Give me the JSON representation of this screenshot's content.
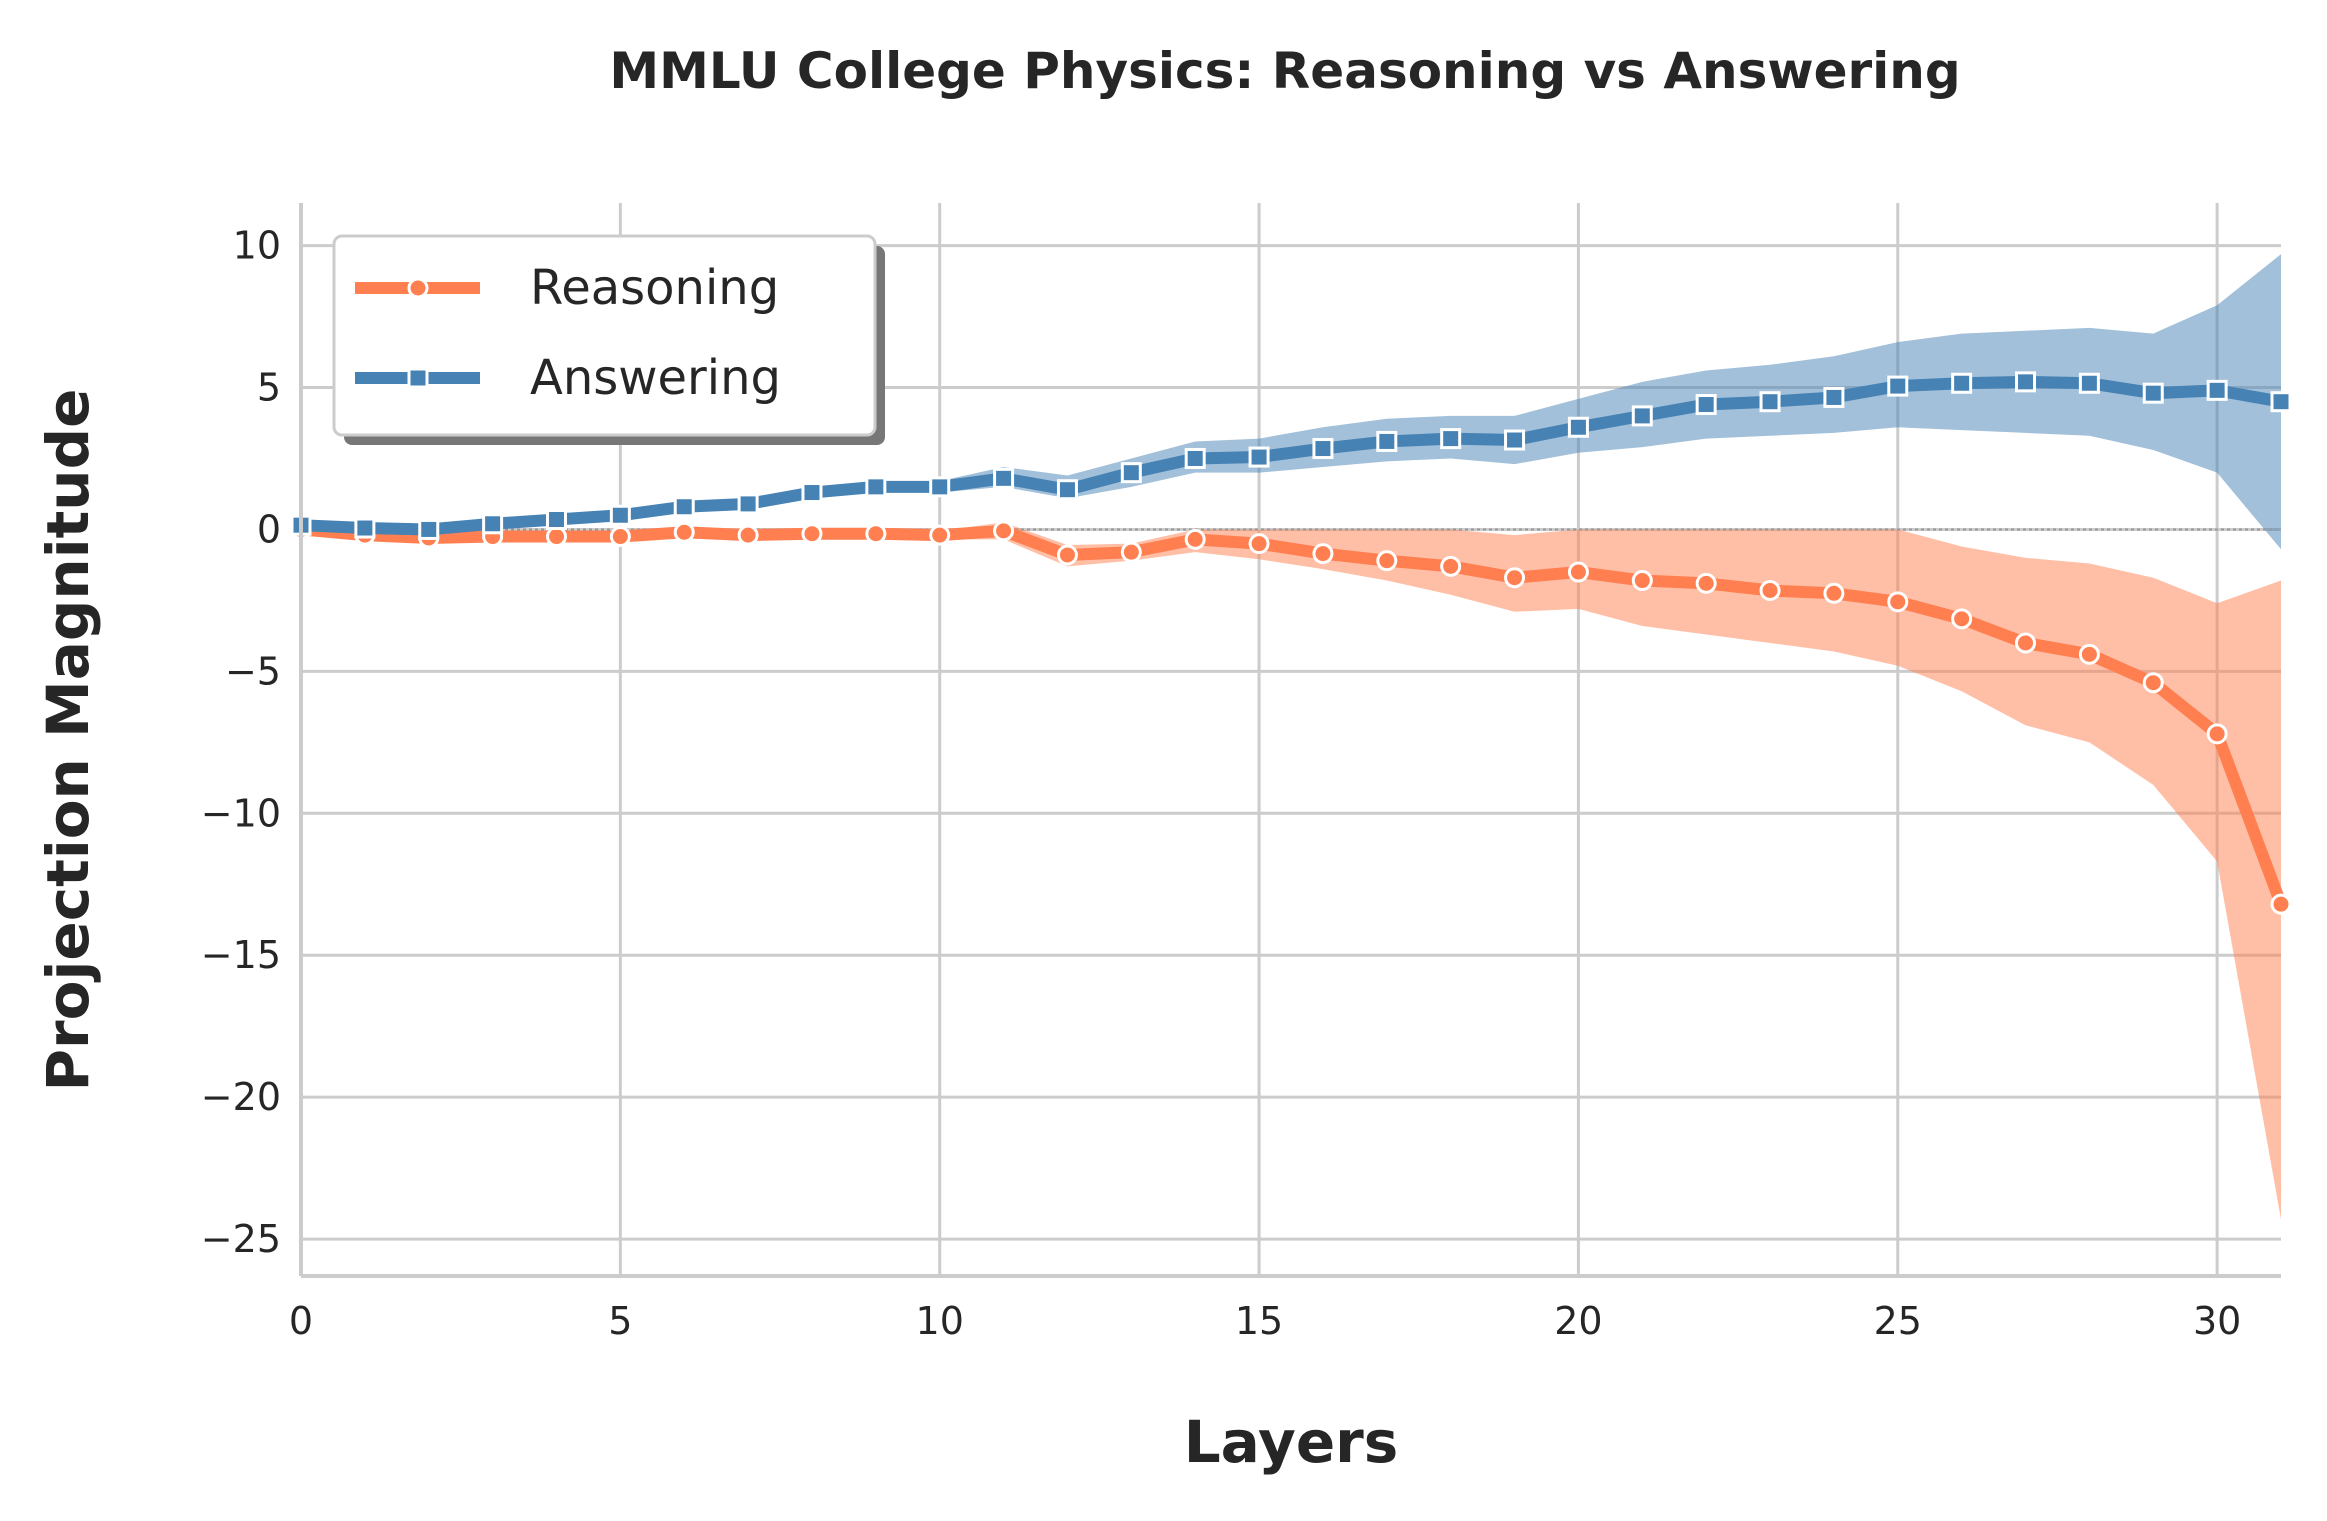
{
  "chart_data": {
    "type": "line",
    "title": "MMLU College Physics: Reasoning vs Answering",
    "xlabel": "Layers",
    "ylabel": "Projection Magnitude",
    "xlim": [
      0,
      31
    ],
    "ylim": [
      -26.3,
      11.5
    ],
    "xticks": [
      0,
      5,
      10,
      15,
      20,
      25,
      30
    ],
    "yticks": [
      10,
      5,
      0,
      -5,
      -10,
      -15,
      -20,
      -25
    ],
    "ytick_labels": [
      "10",
      "5",
      "0",
      "−5",
      "−10",
      "−15",
      "−20",
      "−25"
    ],
    "grid": true,
    "legend_position": "upper-left",
    "zero_line": true,
    "x": [
      0,
      1,
      2,
      3,
      4,
      5,
      6,
      7,
      8,
      9,
      10,
      11,
      12,
      13,
      14,
      15,
      16,
      17,
      18,
      19,
      20,
      21,
      22,
      23,
      24,
      25,
      26,
      27,
      28,
      29,
      30,
      31
    ],
    "series": [
      {
        "name": "Reasoning",
        "color": "#ff7f50",
        "marker": "circle",
        "values": [
          0,
          -0.2,
          -0.3,
          -0.25,
          -0.25,
          -0.25,
          -0.1,
          -0.2,
          -0.15,
          -0.15,
          -0.2,
          -0.05,
          -0.9,
          -0.8,
          -0.35,
          -0.5,
          -0.85,
          -1.1,
          -1.3,
          -1.7,
          -1.5,
          -1.8,
          -1.9,
          -2.15,
          -2.25,
          -2.55,
          -3.15,
          -4.0,
          -4.4,
          -5.4,
          -7.2,
          -13.2
        ],
        "lower": [
          -0.1,
          -0.35,
          -0.45,
          -0.4,
          -0.4,
          -0.4,
          -0.25,
          -0.35,
          -0.3,
          -0.3,
          -0.35,
          -0.35,
          -1.3,
          -1.1,
          -0.8,
          -1.05,
          -1.4,
          -1.8,
          -2.3,
          -2.9,
          -2.8,
          -3.4,
          -3.7,
          -4.0,
          -4.3,
          -4.8,
          -5.7,
          -6.9,
          -7.5,
          -9.0,
          -11.7,
          -24.3
        ],
        "upper": [
          0.1,
          -0.05,
          -0.15,
          -0.1,
          -0.1,
          -0.1,
          0.05,
          -0.05,
          0,
          0,
          -0.05,
          0.25,
          -0.55,
          -0.5,
          0,
          0,
          0,
          0,
          0,
          -0.2,
          0,
          0,
          0,
          0,
          0,
          0,
          -0.6,
          -1.0,
          -1.2,
          -1.7,
          -2.6,
          -1.8
        ]
      },
      {
        "name": "Answering",
        "color": "#4682b4",
        "marker": "square",
        "values": [
          0.15,
          0.05,
          0,
          0.2,
          0.35,
          0.5,
          0.8,
          0.9,
          1.3,
          1.5,
          1.5,
          1.8,
          1.4,
          2.0,
          2.5,
          2.55,
          2.85,
          3.1,
          3.2,
          3.15,
          3.6,
          4.0,
          4.4,
          4.5,
          4.65,
          5.05,
          5.15,
          5.2,
          5.15,
          4.8,
          4.9,
          4.5
        ],
        "lower": [
          0.0,
          -0.1,
          -0.15,
          0.05,
          0.2,
          0.35,
          0.65,
          0.75,
          1.1,
          1.3,
          1.3,
          1.5,
          1.1,
          1.5,
          2.0,
          2.0,
          2.2,
          2.4,
          2.5,
          2.3,
          2.7,
          2.9,
          3.2,
          3.3,
          3.4,
          3.6,
          3.5,
          3.4,
          3.3,
          2.8,
          2.0,
          -0.7
        ],
        "upper": [
          0.3,
          0.2,
          0.15,
          0.35,
          0.5,
          0.65,
          0.95,
          1.05,
          1.5,
          1.7,
          1.7,
          2.2,
          1.9,
          2.5,
          3.1,
          3.2,
          3.6,
          3.9,
          4.0,
          4.0,
          4.6,
          5.2,
          5.6,
          5.8,
          6.1,
          6.6,
          6.9,
          7.0,
          7.1,
          6.9,
          7.9,
          9.7
        ]
      }
    ]
  }
}
